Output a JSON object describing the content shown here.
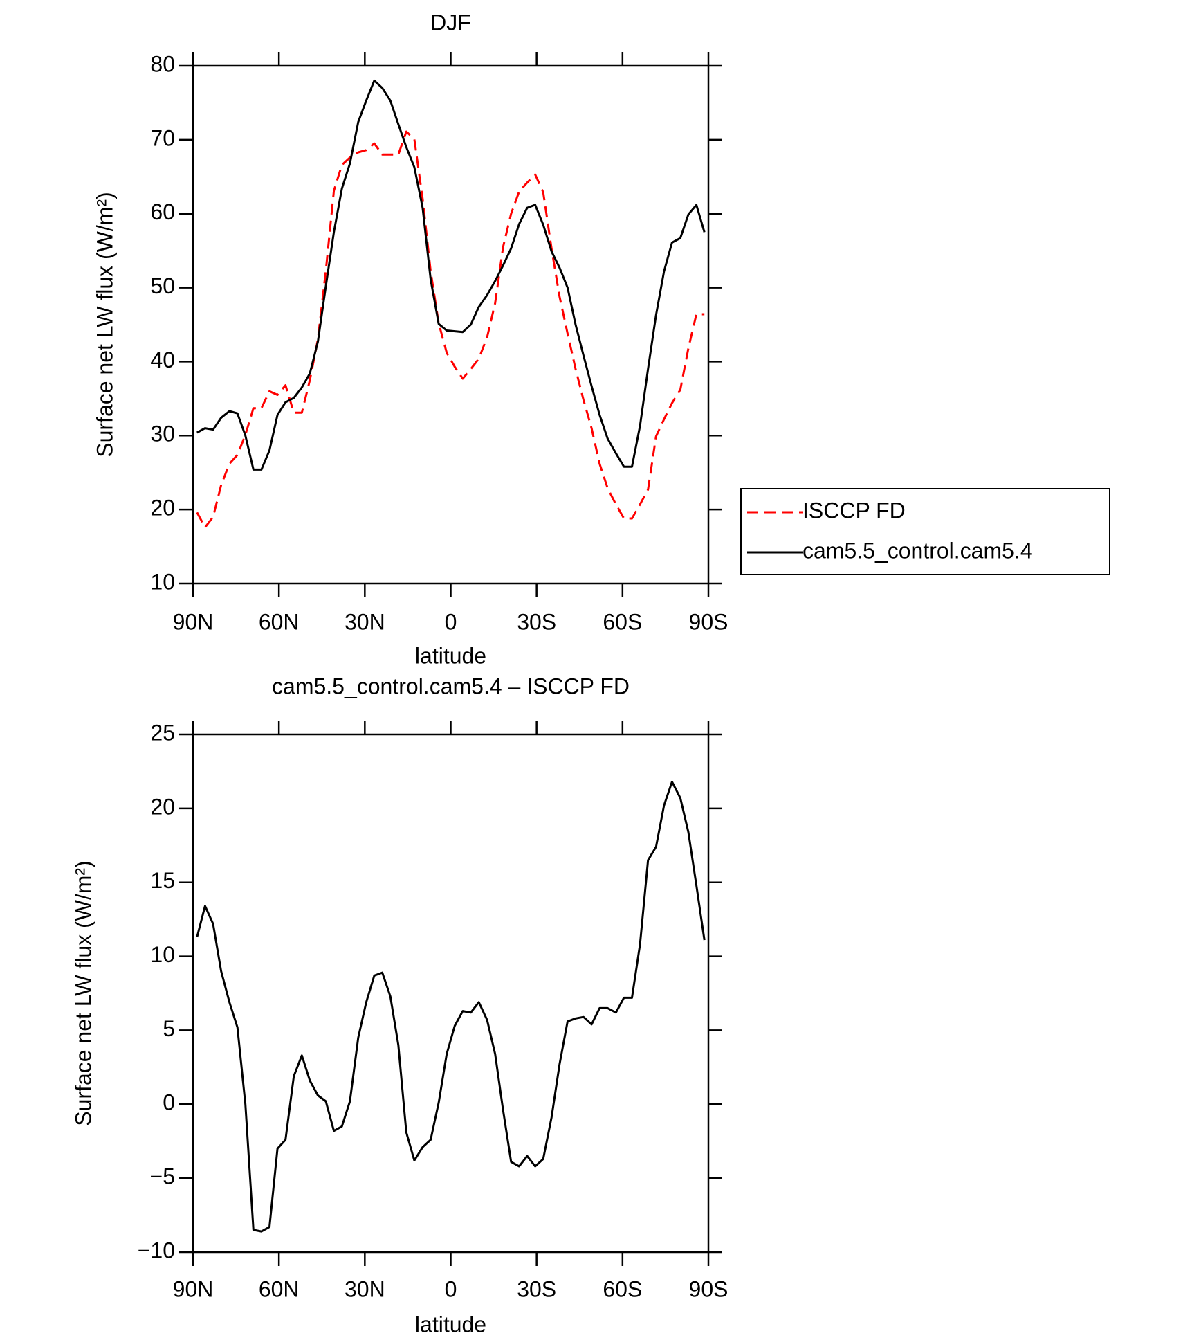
{
  "chart_data": [
    {
      "type": "line",
      "title": "DJF",
      "xlabel": "latitude",
      "ylabel": "Surface net LW flux (W/m²)",
      "x": [
        88.6,
        85.8,
        83.0,
        80.2,
        77.3,
        74.5,
        71.7,
        68.9,
        66.1,
        63.3,
        60.5,
        57.7,
        54.8,
        52.0,
        49.2,
        46.4,
        43.6,
        40.8,
        38.0,
        35.2,
        32.3,
        29.5,
        26.7,
        23.9,
        21.1,
        18.3,
        15.5,
        12.7,
        9.8,
        7.0,
        4.2,
        1.4,
        -1.4,
        -4.2,
        -7.0,
        -9.8,
        -12.7,
        -15.5,
        -18.3,
        -21.1,
        -23.9,
        -26.7,
        -29.5,
        -32.3,
        -35.2,
        -38.0,
        -40.8,
        -43.6,
        -46.4,
        -49.2,
        -52.0,
        -54.8,
        -57.7,
        -60.5,
        -63.3,
        -66.1,
        -68.9,
        -71.7,
        -74.5,
        -77.3,
        -80.2,
        -83.0,
        -85.8,
        -88.6
      ],
      "series": [
        {
          "name": "ISCCP FD",
          "color": "#ff0000",
          "style": "dashed",
          "values": [
            19.6,
            17.6,
            19.0,
            23.3,
            26.2,
            27.4,
            30.1,
            33.7,
            33.7,
            36.0,
            35.5,
            36.8,
            33.1,
            33.1,
            37.5,
            43.0,
            52.3,
            63.1,
            66.6,
            67.6,
            68.3,
            68.6,
            69.5,
            68.0,
            68.0,
            68.0,
            71.1,
            70.1,
            62.0,
            52.2,
            45.2,
            41.2,
            39.3,
            37.7,
            39.0,
            40.4,
            43.3,
            47.9,
            55.5,
            60.0,
            63.0,
            64.2,
            65.3,
            62.9,
            55.3,
            48.8,
            43.8,
            39.0,
            34.8,
            31.0,
            26.2,
            22.9,
            20.7,
            18.8,
            18.8,
            20.7,
            22.7,
            29.9,
            32.2,
            34.4,
            36.2,
            41.8,
            46.4,
            46.4
          ]
        },
        {
          "name": "cam5.5_control.cam5.4",
          "color": "#000000",
          "style": "solid",
          "values": [
            30.4,
            31.0,
            30.8,
            32.4,
            33.3,
            33.0,
            30.0,
            25.4,
            25.4,
            28.0,
            32.8,
            34.5,
            35.1,
            36.5,
            38.4,
            42.7,
            50.2,
            57.5,
            63.4,
            66.8,
            72.4,
            75.3,
            78.0,
            77.0,
            75.3,
            72.1,
            69.0,
            66.3,
            60.8,
            51.1,
            45.1,
            44.2,
            44.1,
            44.0,
            45.0,
            47.4,
            49.0,
            50.9,
            53.0,
            55.3,
            58.6,
            60.8,
            61.2,
            58.5,
            54.9,
            52.7,
            50.0,
            45.0,
            40.8,
            36.7,
            32.8,
            29.6,
            27.6,
            25.8,
            25.8,
            31.3,
            39.0,
            46.3,
            52.2,
            56.1,
            56.7,
            59.9,
            61.2,
            57.5
          ]
        }
      ],
      "xlim": [
        90,
        -90
      ],
      "xticks": [
        {
          "value": 90,
          "label": "90N"
        },
        {
          "value": 60,
          "label": "60N"
        },
        {
          "value": 30,
          "label": "30N"
        },
        0,
        {
          "value": -30,
          "label": "30S"
        },
        {
          "value": -60,
          "label": "60S"
        },
        {
          "value": -90,
          "label": "90S"
        }
      ],
      "ylim": [
        10,
        80
      ],
      "yticks": [
        10,
        20,
        30,
        40,
        50,
        60,
        70,
        80
      ],
      "legend": "right"
    },
    {
      "type": "line",
      "title": "cam5.5_control.cam5.4 – ISCCP FD",
      "xlabel": "latitude",
      "ylabel": "Surface net LW flux (W/m²)",
      "x": [
        88.6,
        85.8,
        83.0,
        80.2,
        77.3,
        74.5,
        71.7,
        68.9,
        66.1,
        63.3,
        60.5,
        57.7,
        54.8,
        52.0,
        49.2,
        46.4,
        43.6,
        40.8,
        38.0,
        35.2,
        32.3,
        29.5,
        26.7,
        23.9,
        21.1,
        18.3,
        15.5,
        12.7,
        9.8,
        7.0,
        4.2,
        1.4,
        -1.4,
        -4.2,
        -7.0,
        -9.8,
        -12.7,
        -15.5,
        -18.3,
        -21.1,
        -23.9,
        -26.7,
        -29.5,
        -32.3,
        -35.2,
        -38.0,
        -40.8,
        -43.6,
        -46.4,
        -49.2,
        -52.0,
        -54.8,
        -57.7,
        -60.5,
        -63.3,
        -66.1,
        -68.9,
        -71.7,
        -74.5,
        -77.3,
        -80.2,
        -83.0,
        -85.8,
        -88.6
      ],
      "series": [
        {
          "color": "#000000",
          "style": "solid",
          "values": [
            11.3,
            13.4,
            12.2,
            9.0,
            6.9,
            5.2,
            0.0,
            -8.5,
            -8.6,
            -8.3,
            -3.0,
            -2.4,
            1.9,
            3.3,
            1.6,
            0.6,
            0.2,
            -1.8,
            -1.5,
            0.2,
            4.5,
            6.9,
            8.7,
            8.9,
            7.3,
            4.0,
            -1.9,
            -3.8,
            -2.9,
            -2.4,
            0.1,
            3.4,
            5.3,
            6.3,
            6.2,
            6.9,
            5.7,
            3.4,
            -0.4,
            -3.9,
            -4.2,
            -3.5,
            -4.2,
            -3.7,
            -0.9,
            2.7,
            5.6,
            5.8,
            5.9,
            5.4,
            6.5,
            6.5,
            6.2,
            7.2,
            7.2,
            10.8,
            16.5,
            17.4,
            20.2,
            21.8,
            20.7,
            18.4,
            14.8,
            11.1
          ]
        }
      ],
      "xlim": [
        90,
        -90
      ],
      "xticks": [
        {
          "value": 90,
          "label": "90N"
        },
        {
          "value": 60,
          "label": "60N"
        },
        {
          "value": 30,
          "label": "30N"
        },
        0,
        {
          "value": -30,
          "label": "30S"
        },
        {
          "value": -60,
          "label": "60S"
        },
        {
          "value": -90,
          "label": "90S"
        }
      ],
      "ylim": [
        -10,
        25
      ],
      "yticks": [
        {
          "value": -10,
          "label": "−10"
        },
        {
          "value": -5,
          "label": "−5"
        },
        0,
        5,
        10,
        15,
        20,
        25
      ]
    }
  ]
}
